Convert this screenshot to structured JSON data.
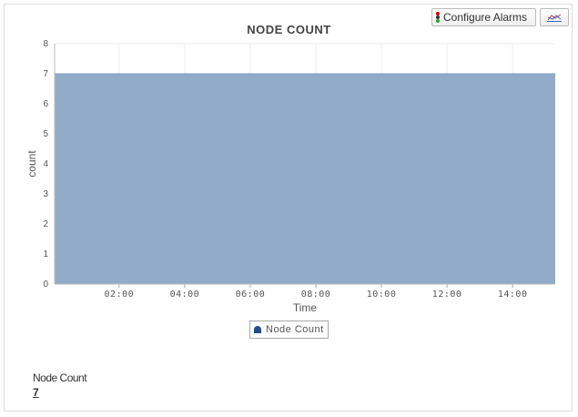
{
  "toolbar": {
    "configure_alarms_label": "Configure Alarms",
    "chart_type_icon": "line-chart-icon",
    "alarm_icon": "traffic-light-icon"
  },
  "summary": {
    "label": "Node Count",
    "value": "7"
  },
  "chart_data": {
    "type": "area",
    "title": "NODE COUNT",
    "xlabel": "Time",
    "ylabel": "count",
    "xlim": [
      "00:02",
      "15:18"
    ],
    "ylim": [
      0,
      8
    ],
    "x_ticks": [
      "02:00",
      "04:00",
      "06:00",
      "08:00",
      "10:00",
      "12:00",
      "14:00"
    ],
    "y_ticks": [
      0,
      1,
      2,
      3,
      4,
      5,
      6,
      7,
      8
    ],
    "grid": true,
    "legend": "bottom-center",
    "series": [
      {
        "name": "Node Count",
        "color": "#8da8c6",
        "points": [
          [
            "00:02",
            7
          ],
          [
            "15:18",
            7
          ]
        ]
      }
    ]
  }
}
